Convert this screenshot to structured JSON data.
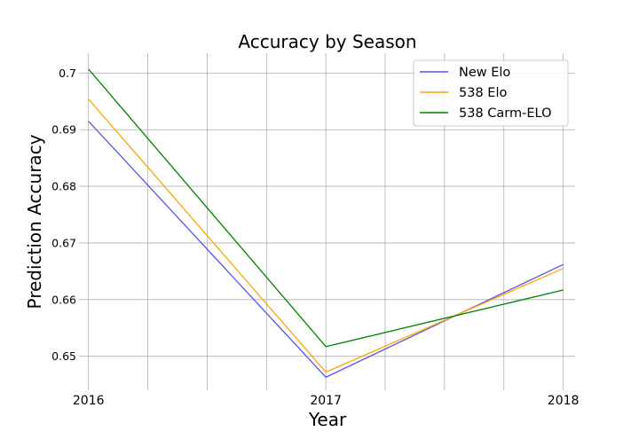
{
  "chart_data": {
    "type": "line",
    "title": "Accuracy by Season",
    "xlabel": "Year",
    "ylabel": "Prediction Accuracy",
    "x": [
      2016,
      2017,
      2018
    ],
    "xticks": [
      "2016",
      "2017",
      "2018"
    ],
    "yticks": [
      "0.65",
      "0.66",
      "0.67",
      "0.68",
      "0.69",
      "0.7"
    ],
    "xlim": [
      2015.96,
      2018.05
    ],
    "ylim": [
      0.644,
      0.7035
    ],
    "grid": true,
    "legend_position": "top-right",
    "series": [
      {
        "name": "New Elo",
        "color": "#5555ee",
        "values": [
          0.6915,
          0.6463,
          0.6662
        ]
      },
      {
        "name": "538 Elo",
        "color": "#ffa500",
        "values": [
          0.6954,
          0.6472,
          0.6655
        ]
      },
      {
        "name": "538 Carm-ELO",
        "color": "#008000",
        "values": [
          0.7007,
          0.6517,
          0.6617
        ]
      }
    ]
  }
}
